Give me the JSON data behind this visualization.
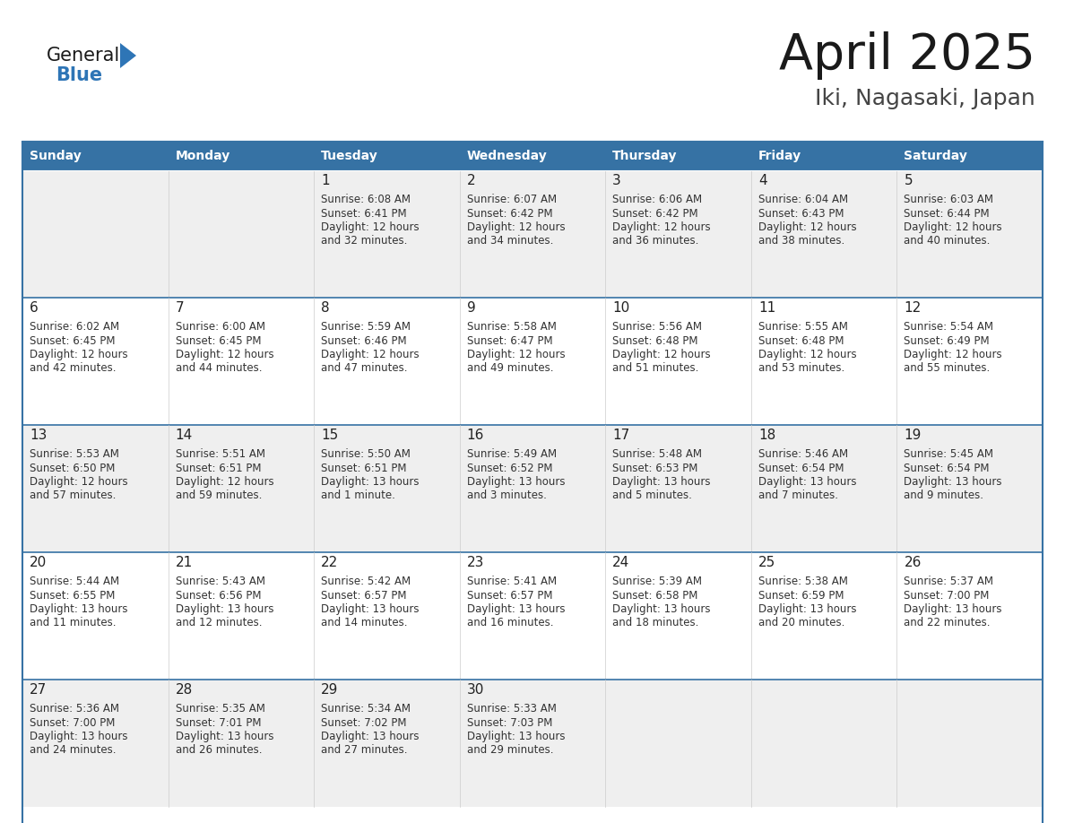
{
  "title": "April 2025",
  "subtitle": "Iki, Nagasaki, Japan",
  "days_of_week": [
    "Sunday",
    "Monday",
    "Tuesday",
    "Wednesday",
    "Thursday",
    "Friday",
    "Saturday"
  ],
  "header_bg": "#3672A4",
  "header_text": "#FFFFFF",
  "cell_bg_light": "#FFFFFF",
  "cell_bg_gray": "#EFEFEF",
  "day_num_bg": "#EFEFEF",
  "border_color": "#3672A4",
  "row_border_color": "#3672A4",
  "day_number_color": "#222222",
  "text_color": "#333333",
  "title_color": "#1a1a1a",
  "subtitle_color": "#444444",
  "logo_general_color": "#1a1a1a",
  "logo_blue_color": "#2E75B6",
  "calendar_data": [
    [
      {
        "day": null,
        "text": ""
      },
      {
        "day": null,
        "text": ""
      },
      {
        "day": 1,
        "text": "Sunrise: 6:08 AM\nSunset: 6:41 PM\nDaylight: 12 hours\nand 32 minutes."
      },
      {
        "day": 2,
        "text": "Sunrise: 6:07 AM\nSunset: 6:42 PM\nDaylight: 12 hours\nand 34 minutes."
      },
      {
        "day": 3,
        "text": "Sunrise: 6:06 AM\nSunset: 6:42 PM\nDaylight: 12 hours\nand 36 minutes."
      },
      {
        "day": 4,
        "text": "Sunrise: 6:04 AM\nSunset: 6:43 PM\nDaylight: 12 hours\nand 38 minutes."
      },
      {
        "day": 5,
        "text": "Sunrise: 6:03 AM\nSunset: 6:44 PM\nDaylight: 12 hours\nand 40 minutes."
      }
    ],
    [
      {
        "day": 6,
        "text": "Sunrise: 6:02 AM\nSunset: 6:45 PM\nDaylight: 12 hours\nand 42 minutes."
      },
      {
        "day": 7,
        "text": "Sunrise: 6:00 AM\nSunset: 6:45 PM\nDaylight: 12 hours\nand 44 minutes."
      },
      {
        "day": 8,
        "text": "Sunrise: 5:59 AM\nSunset: 6:46 PM\nDaylight: 12 hours\nand 47 minutes."
      },
      {
        "day": 9,
        "text": "Sunrise: 5:58 AM\nSunset: 6:47 PM\nDaylight: 12 hours\nand 49 minutes."
      },
      {
        "day": 10,
        "text": "Sunrise: 5:56 AM\nSunset: 6:48 PM\nDaylight: 12 hours\nand 51 minutes."
      },
      {
        "day": 11,
        "text": "Sunrise: 5:55 AM\nSunset: 6:48 PM\nDaylight: 12 hours\nand 53 minutes."
      },
      {
        "day": 12,
        "text": "Sunrise: 5:54 AM\nSunset: 6:49 PM\nDaylight: 12 hours\nand 55 minutes."
      }
    ],
    [
      {
        "day": 13,
        "text": "Sunrise: 5:53 AM\nSunset: 6:50 PM\nDaylight: 12 hours\nand 57 minutes."
      },
      {
        "day": 14,
        "text": "Sunrise: 5:51 AM\nSunset: 6:51 PM\nDaylight: 12 hours\nand 59 minutes."
      },
      {
        "day": 15,
        "text": "Sunrise: 5:50 AM\nSunset: 6:51 PM\nDaylight: 13 hours\nand 1 minute."
      },
      {
        "day": 16,
        "text": "Sunrise: 5:49 AM\nSunset: 6:52 PM\nDaylight: 13 hours\nand 3 minutes."
      },
      {
        "day": 17,
        "text": "Sunrise: 5:48 AM\nSunset: 6:53 PM\nDaylight: 13 hours\nand 5 minutes."
      },
      {
        "day": 18,
        "text": "Sunrise: 5:46 AM\nSunset: 6:54 PM\nDaylight: 13 hours\nand 7 minutes."
      },
      {
        "day": 19,
        "text": "Sunrise: 5:45 AM\nSunset: 6:54 PM\nDaylight: 13 hours\nand 9 minutes."
      }
    ],
    [
      {
        "day": 20,
        "text": "Sunrise: 5:44 AM\nSunset: 6:55 PM\nDaylight: 13 hours\nand 11 minutes."
      },
      {
        "day": 21,
        "text": "Sunrise: 5:43 AM\nSunset: 6:56 PM\nDaylight: 13 hours\nand 12 minutes."
      },
      {
        "day": 22,
        "text": "Sunrise: 5:42 AM\nSunset: 6:57 PM\nDaylight: 13 hours\nand 14 minutes."
      },
      {
        "day": 23,
        "text": "Sunrise: 5:41 AM\nSunset: 6:57 PM\nDaylight: 13 hours\nand 16 minutes."
      },
      {
        "day": 24,
        "text": "Sunrise: 5:39 AM\nSunset: 6:58 PM\nDaylight: 13 hours\nand 18 minutes."
      },
      {
        "day": 25,
        "text": "Sunrise: 5:38 AM\nSunset: 6:59 PM\nDaylight: 13 hours\nand 20 minutes."
      },
      {
        "day": 26,
        "text": "Sunrise: 5:37 AM\nSunset: 7:00 PM\nDaylight: 13 hours\nand 22 minutes."
      }
    ],
    [
      {
        "day": 27,
        "text": "Sunrise: 5:36 AM\nSunset: 7:00 PM\nDaylight: 13 hours\nand 24 minutes."
      },
      {
        "day": 28,
        "text": "Sunrise: 5:35 AM\nSunset: 7:01 PM\nDaylight: 13 hours\nand 26 minutes."
      },
      {
        "day": 29,
        "text": "Sunrise: 5:34 AM\nSunset: 7:02 PM\nDaylight: 13 hours\nand 27 minutes."
      },
      {
        "day": 30,
        "text": "Sunrise: 5:33 AM\nSunset: 7:03 PM\nDaylight: 13 hours\nand 29 minutes."
      },
      {
        "day": null,
        "text": ""
      },
      {
        "day": null,
        "text": ""
      },
      {
        "day": null,
        "text": ""
      }
    ]
  ]
}
